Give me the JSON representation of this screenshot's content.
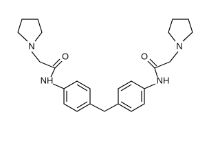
{
  "atoms": [
    "N",
    "O",
    "NH",
    "NH",
    "O",
    "N"
  ]
}
